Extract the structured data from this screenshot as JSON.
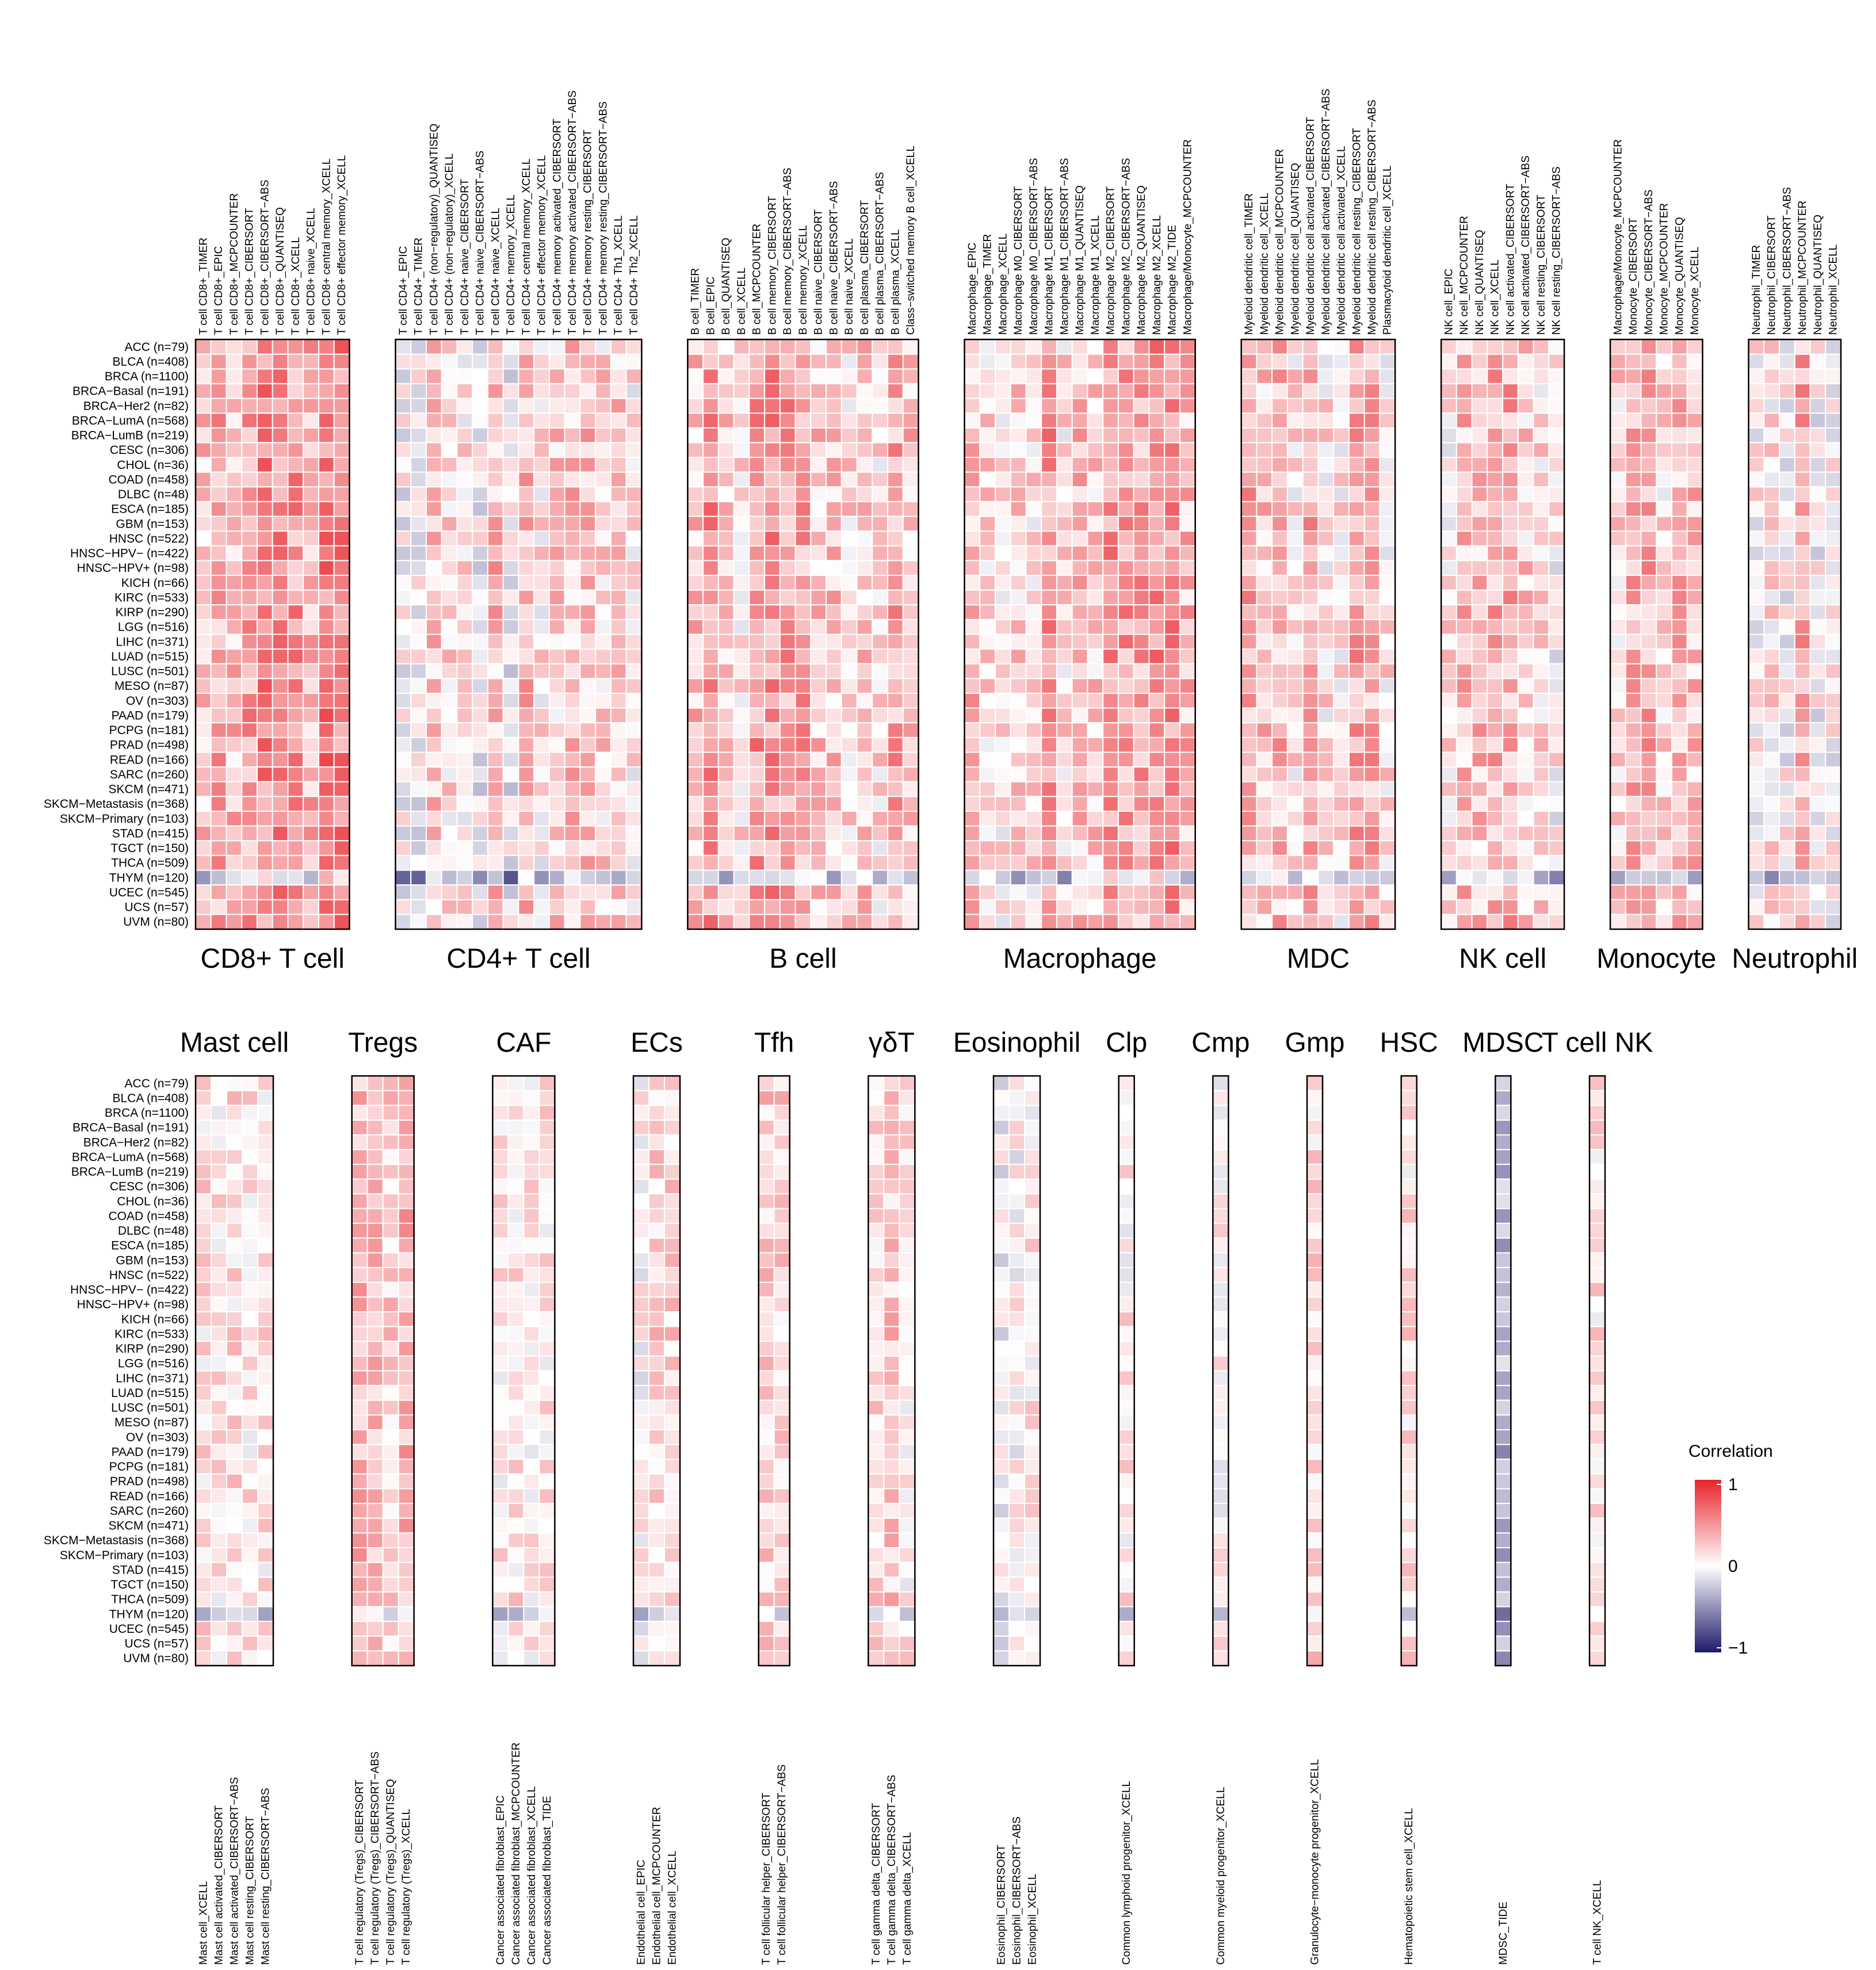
{
  "chart_data": {
    "type": "heatmap",
    "value_range": [
      -1,
      1
    ],
    "colormap": {
      "low": "#1f1a6b",
      "mid": "#ffffff",
      "high": "#e8242b"
    },
    "legend": {
      "title": "Correlation",
      "ticks": [
        "1",
        "0",
        "−1"
      ],
      "placement": "right"
    },
    "row_labels": [
      "ACC (n=79)",
      "BLCA (n=408)",
      "BRCA (n=1100)",
      "BRCA−Basal (n=191)",
      "BRCA−Her2 (n=82)",
      "BRCA−LumA (n=568)",
      "BRCA−LumB (n=219)",
      "CESC (n=306)",
      "CHOL (n=36)",
      "COAD (n=458)",
      "DLBC (n=48)",
      "ESCA (n=185)",
      "GBM (n=153)",
      "HNSC (n=522)",
      "HNSC−HPV− (n=422)",
      "HNSC−HPV+ (n=98)",
      "KICH (n=66)",
      "KIRC (n=533)",
      "KIRP (n=290)",
      "LGG (n=516)",
      "LIHC (n=371)",
      "LUAD (n=515)",
      "LUSC (n=501)",
      "MESO (n=87)",
      "OV (n=303)",
      "PAAD (n=179)",
      "PCPG (n=181)",
      "PRAD (n=498)",
      "READ (n=166)",
      "SARC (n=260)",
      "SKCM (n=471)",
      "SKCM−Metastasis (n=368)",
      "SKCM−Primary (n=103)",
      "STAD (n=415)",
      "TGCT (n=150)",
      "THCA (n=509)",
      "THYM (n=120)",
      "UCEC (n=545)",
      "UCS (n=57)",
      "UVM (n=80)"
    ],
    "panels_top": [
      {
        "title": "CD8+ T cell",
        "columns": [
          "T cell CD8+_TIMER",
          "T cell CD8+_EPIC",
          "T cell CD8+_MCPCOUNTER",
          "T cell CD8+_CIBERSORT",
          "T cell CD8+_CIBERSORT−ABS",
          "T cell CD8+_QUANTISEQ",
          "T cell CD8+_XCELL",
          "T cell CD8+ naive_XCELL",
          "T cell CD8+ central memory_XCELL",
          "T cell CD8+ effector memory_XCELL"
        ],
        "bias": 0.45
      },
      {
        "title": "CD4+ T cell",
        "columns": [
          "T cell CD4+_EPIC",
          "T cell CD4+_TIMER",
          "T cell CD4+ (non−regulatory)_QUANTISEQ",
          "T cell CD4+ (non−regulatory)_XCELL",
          "T cell CD4+ naive_CIBERSORT",
          "T cell CD4+ naive_CIBERSORT−ABS",
          "T cell CD4+ naive_XCELL",
          "T cell CD4+ memory_XCELL",
          "T cell CD4+ central memory_XCELL",
          "T cell CD4+ effector memory_XCELL",
          "T cell CD4+ memory activated_CIBERSORT",
          "T cell CD4+ memory activated_CIBERSORT−ABS",
          "T cell CD4+ memory resting_CIBERSORT",
          "T cell CD4+ memory resting_CIBERSORT−ABS",
          "T cell CD4+ Th1_XCELL",
          "T cell CD4+ Th2_XCELL"
        ],
        "bias": 0.12
      },
      {
        "title": "B cell",
        "columns": [
          "B cell_TIMER",
          "B cell_EPIC",
          "B cell_QUANTISEQ",
          "B cell_XCELL",
          "B cell_MCPCOUNTER",
          "B cell memory_CIBERSORT",
          "B cell memory_CIBERSORT−ABS",
          "B cell memory_XCELL",
          "B cell naive_CIBERSORT",
          "B cell naive_CIBERSORT−ABS",
          "B cell naive_XCELL",
          "B cell plasma_CIBERSORT",
          "B cell plasma_CIBERSORT−ABS",
          "B cell plasma_XCELL",
          "Class−switched memory B cell_XCELL"
        ],
        "bias": 0.3
      },
      {
        "title": "Macrophage",
        "columns": [
          "Macrophage_EPIC",
          "Macrophage_TIMER",
          "Macrophage_XCELL",
          "Macrophage M0_CIBERSORT",
          "Macrophage M0_CIBERSORT−ABS",
          "Macrophage M1_CIBERSORT",
          "Macrophage M1_CIBERSORT−ABS",
          "Macrophage M1_QUANTISEQ",
          "Macrophage M1_XCELL",
          "Macrophage M2_CIBERSORT",
          "Macrophage M2_CIBERSORT−ABS",
          "Macrophage M2_QUANTISEQ",
          "Macrophage M2_XCELL",
          "Macrophage M2_TIDE",
          "Macrophage/Monocyte_MCPCOUNTER"
        ],
        "bias": 0.3
      },
      {
        "title": "MDC",
        "columns": [
          "Myeloid dendritic cell_TIMER",
          "Myeloid dendritic cell_XCELL",
          "Myeloid dendritic cell_MCPCOUNTER",
          "Myeloid dendritic cell_QUANTISEQ",
          "Myeloid dendritic cell activated_CIBERSORT",
          "Myeloid dendritic cell activated_CIBERSORT−ABS",
          "Myeloid dendritic cell activated_XCELL",
          "Myeloid dendritic cell resting_CIBERSORT",
          "Myeloid dendritic cell resting_CIBERSORT−ABS",
          "Plasmacytoid dendritic cell_XCELL"
        ],
        "bias": 0.3
      },
      {
        "title": "NK cell",
        "columns": [
          "NK cell_EPIC",
          "NK cell_MCPCOUNTER",
          "NK cell_QUANTISEQ",
          "NK cell_XCELL",
          "NK cell activated_CIBERSORT",
          "NK cell activated_CIBERSORT−ABS",
          "NK cell resting_CIBERSORT",
          "NK cell resting_CIBERSORT−ABS"
        ],
        "bias": 0.18
      },
      {
        "title": "Monocyte",
        "columns": [
          "Macrophage/Monocyte_MCPCOUNTER",
          "Monocyte_CIBERSORT",
          "Monocyte_CIBERSORT−ABS",
          "Monocyte_MCPCOUNTER",
          "Monocyte_QUANTISEQ",
          "Monocyte_XCELL"
        ],
        "bias": 0.2
      },
      {
        "title": "Neutrophil",
        "columns": [
          "Neutrophil_TIMER",
          "Neutrophil_CIBERSORT",
          "Neutrophil_CIBERSORT−ABS",
          "Neutrophil_MCPCOUNTER",
          "Neutrophil_QUANTISEQ",
          "Neutrophil_XCELL"
        ],
        "bias": 0.2
      }
    ],
    "panels_bottom": [
      {
        "title": "Mast cell",
        "columns": [
          "Mast cell_XCELL",
          "Mast cell activated_CIBERSORT",
          "Mast cell activated_CIBERSORT−ABS",
          "Mast cell resting_CIBERSORT",
          "Mast cell resting_CIBERSORT−ABS"
        ],
        "bias": 0.03
      },
      {
        "title": "Tregs",
        "columns": [
          "T cell regulatory (Tregs)_CIBERSORT",
          "T cell regulatory (Tregs)_CIBERSORT−ABS",
          "T cell regulatory (Tregs)_QUANTISEQ",
          "T cell regulatory (Tregs)_XCELL"
        ],
        "bias": 0.25
      },
      {
        "title": "CAF",
        "columns": [
          "Cancer associated fibroblast_EPIC",
          "Cancer associated fibroblast_MCPCOUNTER",
          "Cancer associated fibroblast_XCELL",
          "Cancer associated fibroblast_TIDE"
        ],
        "bias": 0.15
      },
      {
        "title": "ECs",
        "columns": [
          "Endothelial cell_EPIC",
          "Endothelial cell_MCPCOUNTER",
          "Endothelial cell_XCELL"
        ],
        "bias": 0.15
      },
      {
        "title": "Tfh",
        "columns": [
          "T cell follicular helper_CIBERSORT",
          "T cell follicular helper_CIBERSORT−ABS"
        ],
        "bias": 0.3
      },
      {
        "title": "γδT",
        "columns": [
          "T cell gamma delta_CIBERSORT",
          "T cell gamma delta_CIBERSORT−ABS",
          "T cell gamma delta_XCELL"
        ],
        "bias": 0.2
      },
      {
        "title": "Eosinophil",
        "columns": [
          "Eosinophil_CIBERSORT",
          "Eosinophil_CIBERSORT−ABS",
          "Eosinophil_XCELL"
        ],
        "bias": 0.0
      },
      {
        "title": "Clp",
        "columns": [
          "Common lymphoid progenitor_XCELL"
        ],
        "bias": 0.02
      },
      {
        "title": "Cmp",
        "columns": [
          "Common myeloid progenitor_XCELL"
        ],
        "bias": 0.03
      },
      {
        "title": "Gmp",
        "columns": [
          "Granulocyte−monocyte progenitor_XCELL"
        ],
        "bias": 0.08
      },
      {
        "title": "HSC",
        "columns": [
          "Hematopoietic stem cell_XCELL"
        ],
        "bias": 0.04
      },
      {
        "title": "MDSC",
        "columns": [
          "MDSC_TIDE"
        ],
        "bias": -0.25
      },
      {
        "title": "T cell NK",
        "columns": [
          "T cell NK_XCELL"
        ],
        "bias": 0.06
      }
    ]
  }
}
